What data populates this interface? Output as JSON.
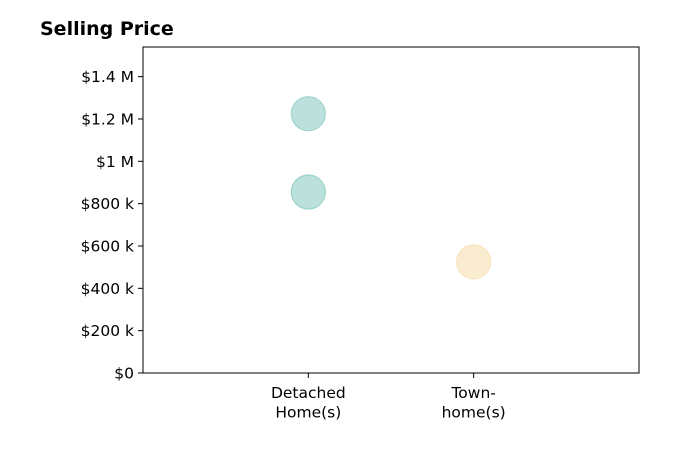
{
  "chart_data": {
    "type": "scatter",
    "title": "Selling Price",
    "xlabel": "",
    "ylabel": "",
    "categories": [
      [
        "Detached",
        "Home(s)"
      ],
      [
        "Town-",
        "home(s)"
      ]
    ],
    "x_range": [
      0,
      3
    ],
    "ylim": [
      0,
      1540000
    ],
    "y_ticks": [
      {
        "value": 0,
        "label": "$0"
      },
      {
        "value": 200000,
        "label": "$200 k"
      },
      {
        "value": 400000,
        "label": "$400 k"
      },
      {
        "value": 600000,
        "label": "$600 k"
      },
      {
        "value": 800000,
        "label": "$800 k"
      },
      {
        "value": 1000000,
        "label": "$1 M"
      },
      {
        "value": 1200000,
        "label": "$1.2 M"
      },
      {
        "value": 1400000,
        "label": "$1.4 M"
      }
    ],
    "grid": false,
    "points": [
      {
        "category": 0,
        "value": 1225000,
        "color": "#9fd4cd"
      },
      {
        "category": 0,
        "value": 855000,
        "color": "#9fd4cd"
      },
      {
        "category": 1,
        "value": 525000,
        "color": "#f8e4bd"
      }
    ],
    "colors": {
      "detached": "#9fd4cd",
      "townhome": "#f8e4bd"
    }
  }
}
